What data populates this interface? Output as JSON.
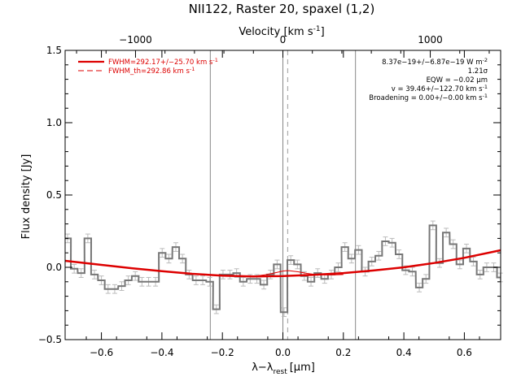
{
  "chart_data": {
    "type": "line",
    "title": "NII122, Raster 20, spaxel (1,2)",
    "xlabel": "λ−λ_rest [μm]",
    "xlabel_main": "λ−λ",
    "xlabel_sub": "rest",
    "xlabel_unit": "[μm]",
    "ylabel": "Flux density [Jy]",
    "top_xlabel": "Velocity [km s⁻¹]",
    "top_xlabel_main": "Velocity [km s",
    "top_xlabel_sup": "-1",
    "top_xlabel_close": "]",
    "xlim": [
      -0.72,
      0.72
    ],
    "ylim": [
      -0.5,
      1.5
    ],
    "x_ticks": [
      -0.6,
      -0.4,
      -0.2,
      0.0,
      0.2,
      0.4,
      0.6
    ],
    "x_tick_labels": [
      "−0.6",
      "−0.4",
      "−0.2",
      "0.0",
      "0.2",
      "0.4",
      "0.6"
    ],
    "y_ticks": [
      -0.5,
      0.0,
      0.5,
      1.0,
      1.5
    ],
    "y_tick_labels": [
      "−0.5",
      "0.0",
      "0.5",
      "1.0",
      "1.5"
    ],
    "top_ticks_um": [
      -0.4873,
      0.0,
      0.4873
    ],
    "top_tick_labels": [
      "−1000",
      "0",
      "1000"
    ],
    "vertical_lines_um": [
      -0.24,
      0.0,
      0.24
    ],
    "center_dashed_um": 0.016,
    "grid": false,
    "legend_position": "top-left",
    "legend": [
      {
        "label": "FWHM=292.17+/−25.70 km s",
        "sup": "-1",
        "style": "solid",
        "color": "#dd0000"
      },
      {
        "label": "FWHM_th=292.86 km s",
        "sup": "-1",
        "style": "dashed",
        "color": "#dd0000"
      }
    ],
    "annotations": [
      {
        "text": "8.37e−19+/−6.87e−19 W m",
        "sup": "-2"
      },
      {
        "text": "1.21σ",
        "sup": ""
      },
      {
        "text": "EQW = −0.02 μm",
        "sup": ""
      },
      {
        "text": "v = 39.46+/−122.70 km s",
        "sup": "-1"
      },
      {
        "text": "Broadening = 0.00+/−0.00 km s",
        "sup": "-1"
      }
    ],
    "series": [
      {
        "kind": "step",
        "color": "#777777",
        "bin_width": 0.0224,
        "x": [
          -0.712,
          -0.69,
          -0.667,
          -0.645,
          -0.623,
          -0.6,
          -0.578,
          -0.556,
          -0.533,
          -0.511,
          -0.488,
          -0.466,
          -0.444,
          -0.421,
          -0.399,
          -0.377,
          -0.354,
          -0.332,
          -0.31,
          -0.287,
          -0.265,
          -0.242,
          -0.22,
          -0.198,
          -0.175,
          -0.153,
          -0.131,
          -0.108,
          -0.086,
          -0.063,
          -0.041,
          -0.019,
          0.004,
          0.026,
          0.048,
          0.071,
          0.093,
          0.115,
          0.138,
          0.16,
          0.183,
          0.205,
          0.227,
          0.25,
          0.272,
          0.294,
          0.317,
          0.339,
          0.361,
          0.384,
          0.406,
          0.428,
          0.451,
          0.473,
          0.496,
          0.518,
          0.54,
          0.563,
          0.585,
          0.607,
          0.63,
          0.652,
          0.674,
          0.697,
          0.719
        ],
        "y": [
          0.2,
          -0.01,
          -0.04,
          0.2,
          -0.05,
          -0.09,
          -0.15,
          -0.15,
          -0.13,
          -0.09,
          -0.06,
          -0.1,
          -0.1,
          -0.1,
          0.1,
          0.06,
          0.14,
          0.06,
          -0.05,
          -0.09,
          -0.09,
          -0.1,
          -0.29,
          -0.05,
          -0.05,
          -0.04,
          -0.1,
          -0.08,
          -0.08,
          -0.12,
          -0.05,
          0.02,
          -0.31,
          0.05,
          0.02,
          -0.06,
          -0.1,
          -0.04,
          -0.08,
          -0.05,
          0.0,
          0.14,
          0.06,
          0.12,
          -0.03,
          0.04,
          0.08,
          0.18,
          0.17,
          0.09,
          -0.02,
          -0.03,
          -0.14,
          -0.08,
          0.29,
          0.03,
          0.24,
          0.16,
          0.02,
          0.13,
          0.04,
          -0.05,
          0.0,
          0.0,
          -0.07
        ],
        "errors": 0.03
      },
      {
        "kind": "fit",
        "name": "FWHM=292.17+/−25.70 km s⁻¹",
        "color": "#dd0000",
        "x": [
          -0.72,
          -0.6,
          -0.5,
          -0.4,
          -0.3,
          -0.2,
          -0.1,
          0.0,
          0.1,
          0.2,
          0.3,
          0.4,
          0.5,
          0.6,
          0.72
        ],
        "y": [
          0.045,
          0.017,
          -0.006,
          -0.027,
          -0.045,
          -0.058,
          -0.063,
          -0.06,
          -0.052,
          -0.04,
          -0.022,
          0.0,
          0.03,
          0.066,
          0.118
        ]
      },
      {
        "kind": "gaussian",
        "name": "FWHM_th=292.86 km s⁻¹",
        "color": "#dd0000",
        "x": [
          -0.15,
          -0.12,
          -0.09,
          -0.06,
          -0.03,
          0.0,
          0.01,
          0.02,
          0.05,
          0.08,
          0.11,
          0.14,
          0.17,
          0.2
        ],
        "y": [
          -0.064,
          -0.063,
          -0.06,
          -0.052,
          -0.04,
          -0.026,
          -0.024,
          -0.023,
          -0.031,
          -0.042,
          -0.05,
          -0.053,
          -0.052,
          -0.05
        ]
      }
    ]
  }
}
